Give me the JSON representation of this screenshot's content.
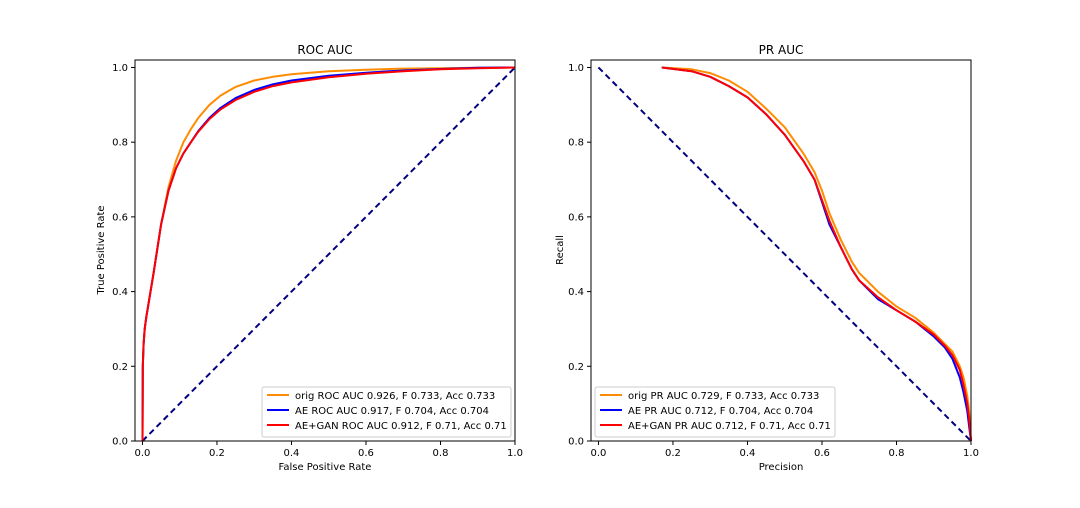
{
  "chart_data": [
    {
      "type": "line",
      "title": "ROC AUC",
      "xlabel": "False Positive Rate",
      "ylabel": "True Positive Rate",
      "xlim": [
        -0.02,
        1.0
      ],
      "ylim": [
        0.0,
        1.02
      ],
      "xticks": [
        "0.0",
        "0.2",
        "0.4",
        "0.6",
        "0.8",
        "1.0"
      ],
      "yticks": [
        "0.0",
        "0.2",
        "0.4",
        "0.6",
        "0.8",
        "1.0"
      ],
      "grid": false,
      "legend_position": "lower-right",
      "reference_line": {
        "x": [
          0,
          1
        ],
        "y": [
          0,
          1
        ],
        "color": "#000080",
        "style": "dashed"
      },
      "series": [
        {
          "name": "orig ROC AUC 0.926, F 0.733, Acc 0.733",
          "color": "#ff8c00",
          "x": [
            0,
            0.001,
            0.003,
            0.006,
            0.01,
            0.02,
            0.03,
            0.05,
            0.07,
            0.09,
            0.11,
            0.13,
            0.15,
            0.18,
            0.21,
            0.25,
            0.3,
            0.35,
            0.4,
            0.5,
            0.6,
            0.7,
            0.8,
            0.9,
            1.0
          ],
          "y": [
            0,
            0.2,
            0.26,
            0.3,
            0.33,
            0.39,
            0.45,
            0.58,
            0.68,
            0.75,
            0.8,
            0.835,
            0.865,
            0.9,
            0.925,
            0.948,
            0.965,
            0.975,
            0.982,
            0.99,
            0.994,
            0.997,
            0.998,
            0.999,
            1.0
          ]
        },
        {
          "name": "AE ROC AUC 0.917, F 0.704, Acc 0.704",
          "color": "#0000ff",
          "x": [
            0,
            0.001,
            0.003,
            0.006,
            0.01,
            0.02,
            0.03,
            0.05,
            0.07,
            0.09,
            0.11,
            0.13,
            0.15,
            0.18,
            0.21,
            0.25,
            0.3,
            0.35,
            0.4,
            0.5,
            0.6,
            0.7,
            0.8,
            0.9,
            1.0
          ],
          "y": [
            0,
            0.2,
            0.26,
            0.3,
            0.33,
            0.39,
            0.45,
            0.58,
            0.67,
            0.73,
            0.77,
            0.8,
            0.83,
            0.865,
            0.892,
            0.918,
            0.94,
            0.955,
            0.965,
            0.978,
            0.986,
            0.992,
            0.996,
            0.999,
            1.0
          ]
        },
        {
          "name": "AE+GAN ROC AUC 0.912, F 0.71, Acc 0.71",
          "color": "#ff0000",
          "x": [
            0,
            0.001,
            0.003,
            0.006,
            0.01,
            0.02,
            0.03,
            0.05,
            0.07,
            0.09,
            0.11,
            0.13,
            0.15,
            0.18,
            0.21,
            0.25,
            0.3,
            0.35,
            0.4,
            0.5,
            0.6,
            0.7,
            0.8,
            0.9,
            1.0
          ],
          "y": [
            0,
            0.2,
            0.26,
            0.3,
            0.33,
            0.39,
            0.45,
            0.58,
            0.67,
            0.73,
            0.77,
            0.8,
            0.828,
            0.862,
            0.888,
            0.913,
            0.935,
            0.95,
            0.96,
            0.974,
            0.983,
            0.99,
            0.995,
            0.998,
            1.0
          ]
        }
      ]
    },
    {
      "type": "line",
      "title": "PR AUC",
      "xlabel": "Precision",
      "ylabel": "Recall",
      "xlim": [
        -0.02,
        1.0
      ],
      "ylim": [
        0.0,
        1.02
      ],
      "xticks": [
        "0.0",
        "0.2",
        "0.4",
        "0.6",
        "0.8",
        "1.0"
      ],
      "yticks": [
        "0.0",
        "0.2",
        "0.4",
        "0.6",
        "0.8",
        "1.0"
      ],
      "grid": false,
      "legend_position": "lower-left",
      "reference_line": {
        "x": [
          0,
          1
        ],
        "y": [
          1,
          0
        ],
        "color": "#000080",
        "style": "dashed"
      },
      "series": [
        {
          "name": "orig PR AUC 0.729, F 0.733, Acc 0.733",
          "color": "#ff8c00",
          "x": [
            0.17,
            0.25,
            0.3,
            0.35,
            0.4,
            0.45,
            0.5,
            0.55,
            0.58,
            0.6,
            0.62,
            0.65,
            0.68,
            0.7,
            0.75,
            0.8,
            0.85,
            0.9,
            0.93,
            0.95,
            0.97,
            0.98,
            0.99,
            0.995,
            1.0
          ],
          "y": [
            1.0,
            0.995,
            0.985,
            0.965,
            0.935,
            0.89,
            0.84,
            0.77,
            0.72,
            0.67,
            0.61,
            0.54,
            0.48,
            0.45,
            0.4,
            0.36,
            0.33,
            0.29,
            0.26,
            0.24,
            0.2,
            0.17,
            0.12,
            0.08,
            0.0
          ]
        },
        {
          "name": "AE PR AUC 0.712, F 0.704, Acc 0.704",
          "color": "#0000ff",
          "x": [
            0.17,
            0.25,
            0.3,
            0.35,
            0.4,
            0.45,
            0.5,
            0.55,
            0.58,
            0.6,
            0.62,
            0.65,
            0.68,
            0.7,
            0.75,
            0.8,
            0.85,
            0.9,
            0.93,
            0.95,
            0.97,
            0.98,
            0.99,
            0.995,
            1.0
          ],
          "y": [
            1.0,
            0.99,
            0.975,
            0.95,
            0.92,
            0.875,
            0.82,
            0.75,
            0.7,
            0.64,
            0.58,
            0.52,
            0.46,
            0.43,
            0.38,
            0.35,
            0.32,
            0.28,
            0.25,
            0.22,
            0.17,
            0.13,
            0.08,
            0.04,
            0.0
          ]
        },
        {
          "name": "AE+GAN PR AUC 0.712, F 0.71, Acc 0.71",
          "color": "#ff0000",
          "x": [
            0.17,
            0.25,
            0.3,
            0.35,
            0.4,
            0.45,
            0.5,
            0.55,
            0.58,
            0.6,
            0.62,
            0.65,
            0.68,
            0.7,
            0.75,
            0.8,
            0.85,
            0.9,
            0.93,
            0.95,
            0.97,
            0.98,
            0.99,
            0.995,
            1.0
          ],
          "y": [
            1.0,
            0.99,
            0.975,
            0.95,
            0.92,
            0.875,
            0.82,
            0.75,
            0.7,
            0.645,
            0.59,
            0.52,
            0.46,
            0.43,
            0.385,
            0.35,
            0.32,
            0.285,
            0.255,
            0.23,
            0.19,
            0.15,
            0.1,
            0.06,
            0.0
          ]
        }
      ]
    }
  ]
}
